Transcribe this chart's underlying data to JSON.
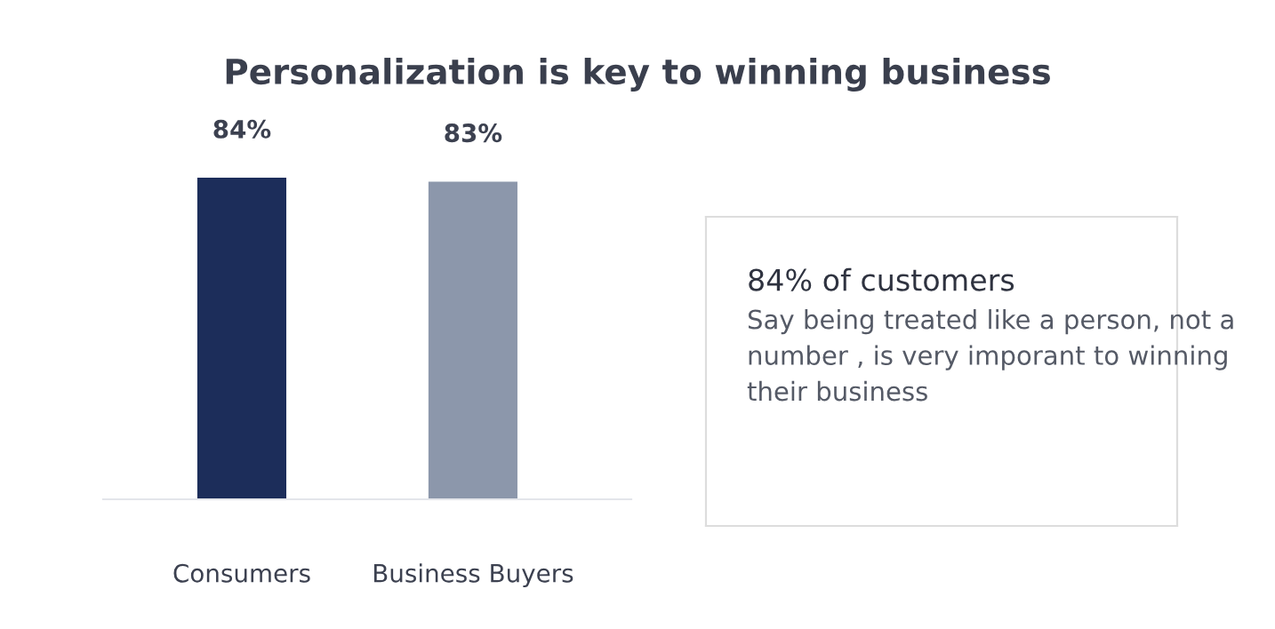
{
  "chart_data": [
    {
      "type": "bar",
      "title": "Personalization is key to winning business",
      "categories": [
        "Consumers",
        "Business Buyers"
      ],
      "values": [
        84,
        83
      ],
      "colors": [
        "#1c2d5a",
        "#8c97ab"
      ],
      "value_labels": [
        "84%",
        "83%"
      ],
      "grid": false,
      "legend": false
    },
    {
      "type": "other",
      "title": "84% of customers",
      "annotations": [
        "Say being treated like a person, not a number , is very imporant to winning their business"
      ]
    }
  ]
}
